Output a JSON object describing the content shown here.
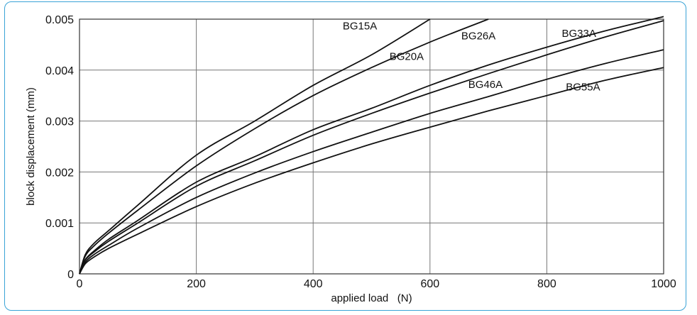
{
  "chart_data": {
    "type": "line",
    "xlabel": "applied load   (N)",
    "ylabel": "block displacement (mm)",
    "xlim": [
      0,
      1000
    ],
    "ylim": [
      0,
      0.005
    ],
    "x_ticks": [
      0,
      200,
      400,
      600,
      800,
      1000
    ],
    "y_ticks": [
      0,
      0.001,
      0.002,
      0.003,
      0.004,
      0.005
    ],
    "x_tick_labels": [
      "0",
      "200",
      "400",
      "600",
      "800",
      "1000"
    ],
    "y_tick_labels": [
      "0",
      "0.001",
      "0.002",
      "0.003",
      "0.004",
      "0.005"
    ],
    "grid": true,
    "series": [
      {
        "name": "BG15A",
        "x": [
          0,
          10,
          25,
          50,
          100,
          200,
          300,
          400,
          500,
          600
        ],
        "y": [
          0,
          0.00038,
          0.0006,
          0.00085,
          0.00135,
          0.00233,
          0.003,
          0.0037,
          0.0043,
          0.005
        ]
      },
      {
        "name": "BG20A",
        "x": [
          0,
          10,
          25,
          50,
          100,
          200,
          300,
          400,
          500,
          600,
          700
        ],
        "y": [
          0,
          0.00035,
          0.00055,
          0.0008,
          0.00125,
          0.00212,
          0.00285,
          0.0035,
          0.00405,
          0.00455,
          0.005
        ]
      },
      {
        "name": "BG26A",
        "x": [
          0,
          10,
          25,
          50,
          100,
          200,
          300,
          400,
          500,
          600,
          700,
          800,
          900,
          1000
        ],
        "y": [
          0,
          0.00028,
          0.00045,
          0.00068,
          0.00105,
          0.0018,
          0.0023,
          0.00283,
          0.00325,
          0.0037,
          0.0041,
          0.00445,
          0.00477,
          0.00505
        ]
      },
      {
        "name": "BG33A",
        "x": [
          0,
          10,
          25,
          50,
          100,
          200,
          300,
          400,
          500,
          600,
          700,
          800,
          900,
          1000
        ],
        "y": [
          0,
          0.00027,
          0.00043,
          0.00064,
          0.001,
          0.00172,
          0.00222,
          0.00272,
          0.00315,
          0.00355,
          0.00393,
          0.0043,
          0.00465,
          0.00497
        ]
      },
      {
        "name": "BG46A",
        "x": [
          0,
          10,
          25,
          50,
          100,
          200,
          300,
          400,
          500,
          600,
          700,
          800,
          900,
          1000
        ],
        "y": [
          0,
          0.00023,
          0.00038,
          0.00056,
          0.0009,
          0.0015,
          0.00198,
          0.0024,
          0.00278,
          0.00315,
          0.00348,
          0.00382,
          0.00413,
          0.0044
        ]
      },
      {
        "name": "BG55A",
        "x": [
          0,
          10,
          25,
          50,
          100,
          200,
          300,
          400,
          500,
          600,
          700,
          800,
          900,
          1000
        ],
        "y": [
          0,
          0.0002,
          0.00033,
          0.0005,
          0.00078,
          0.00132,
          0.00178,
          0.00218,
          0.00255,
          0.00288,
          0.0032,
          0.0035,
          0.0038,
          0.00405
        ]
      }
    ],
    "labels": [
      {
        "series": "BG15A",
        "text": "BG15A",
        "x": 480,
        "y": 0.0048
      },
      {
        "series": "BG20A",
        "text": "BG20A",
        "x": 560,
        "y": 0.0042
      },
      {
        "series": "BG26A",
        "text": "BG26A",
        "x": 683,
        "y": 0.0046
      },
      {
        "series": "BG33A",
        "text": "BG33A",
        "x": 855,
        "y": 0.00465
      },
      {
        "series": "BG46A",
        "text": "BG46A",
        "x": 695,
        "y": 0.00365
      },
      {
        "series": "BG55A",
        "text": "BG55A",
        "x": 862,
        "y": 0.0036
      }
    ]
  }
}
